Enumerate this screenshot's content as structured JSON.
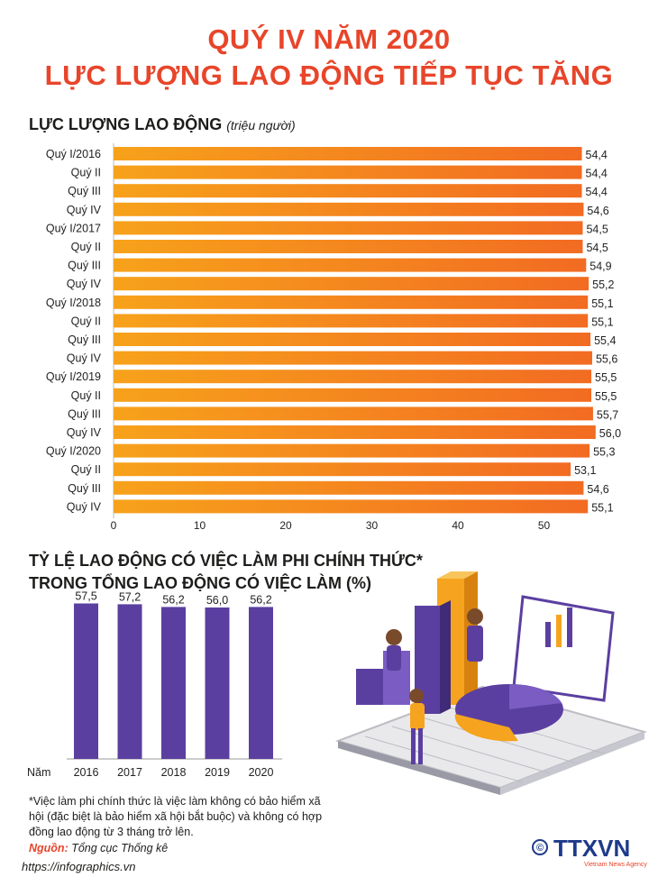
{
  "title_line1": "QUÝ IV NĂM 2020",
  "title_line2": "LỰC LƯỢNG LAO ĐỘNG TIẾP TỤC TĂNG",
  "chart_data": [
    {
      "type": "bar",
      "orientation": "horizontal",
      "title": "LỰC LƯỢNG LAO ĐỘNG",
      "unit": "(triệu người)",
      "categories": [
        "Quý I/2016",
        "Quý II",
        "Quý III",
        "Quý IV",
        "Quý I/2017",
        "Quý II",
        "Quý III",
        "Quý IV",
        "Quý I/2018",
        "Quý II",
        "Quý III",
        "Quý IV",
        "Quý I/2019",
        "Quý II",
        "Quý III",
        "Quý IV",
        "Quý I/2020",
        "Quý II",
        "Quý III",
        "Quý IV"
      ],
      "values": [
        54.4,
        54.4,
        54.4,
        54.6,
        54.5,
        54.5,
        54.9,
        55.2,
        55.1,
        55.1,
        55.4,
        55.6,
        55.5,
        55.5,
        55.7,
        56.0,
        55.3,
        53.1,
        54.6,
        55.1
      ],
      "value_labels": [
        "54,4",
        "54,4",
        "54,4",
        "54,6",
        "54,5",
        "54,5",
        "54,9",
        "55,2",
        "55,1",
        "55,1",
        "55,4",
        "55,6",
        "55,5",
        "55,5",
        "55,7",
        "56,0",
        "55,3",
        "53,1",
        "54,6",
        "55,1"
      ],
      "xticks": [
        "0",
        "10",
        "20",
        "30",
        "40",
        "50"
      ],
      "xlim": [
        0,
        60
      ],
      "bar_color_start": "#f7a21b",
      "bar_color_end": "#f26b22"
    },
    {
      "type": "bar",
      "title_line1": "TỶ LỆ LAO ĐỘNG CÓ VIỆC LÀM PHI CHÍNH THỨC*",
      "title_line2": "TRONG TỔNG LAO ĐỘNG CÓ VIỆC LÀM (%)",
      "axis_label": "Năm",
      "categories": [
        "2016",
        "2017",
        "2018",
        "2019",
        "2020"
      ],
      "values": [
        57.5,
        57.2,
        56.2,
        56.0,
        56.2
      ],
      "value_labels": [
        "57,5",
        "57,2",
        "56,2",
        "56,0",
        "56,2"
      ],
      "bar_color": "#5b3fa0"
    }
  ],
  "note": "*Việc làm phi chính thức là việc làm không có bảo hiểm xã hội (đặc biệt là bảo hiểm xã hội bắt buộc) và không có hợp đồng lao động từ 3 tháng trở lên.",
  "source_label": "Nguồn:",
  "source_text": "Tổng cục Thống kê",
  "website": "https://infographics.vn",
  "logo_text": "TTXVN",
  "logo_sub": "Vietnam News Agency",
  "logo_copyright": "©"
}
